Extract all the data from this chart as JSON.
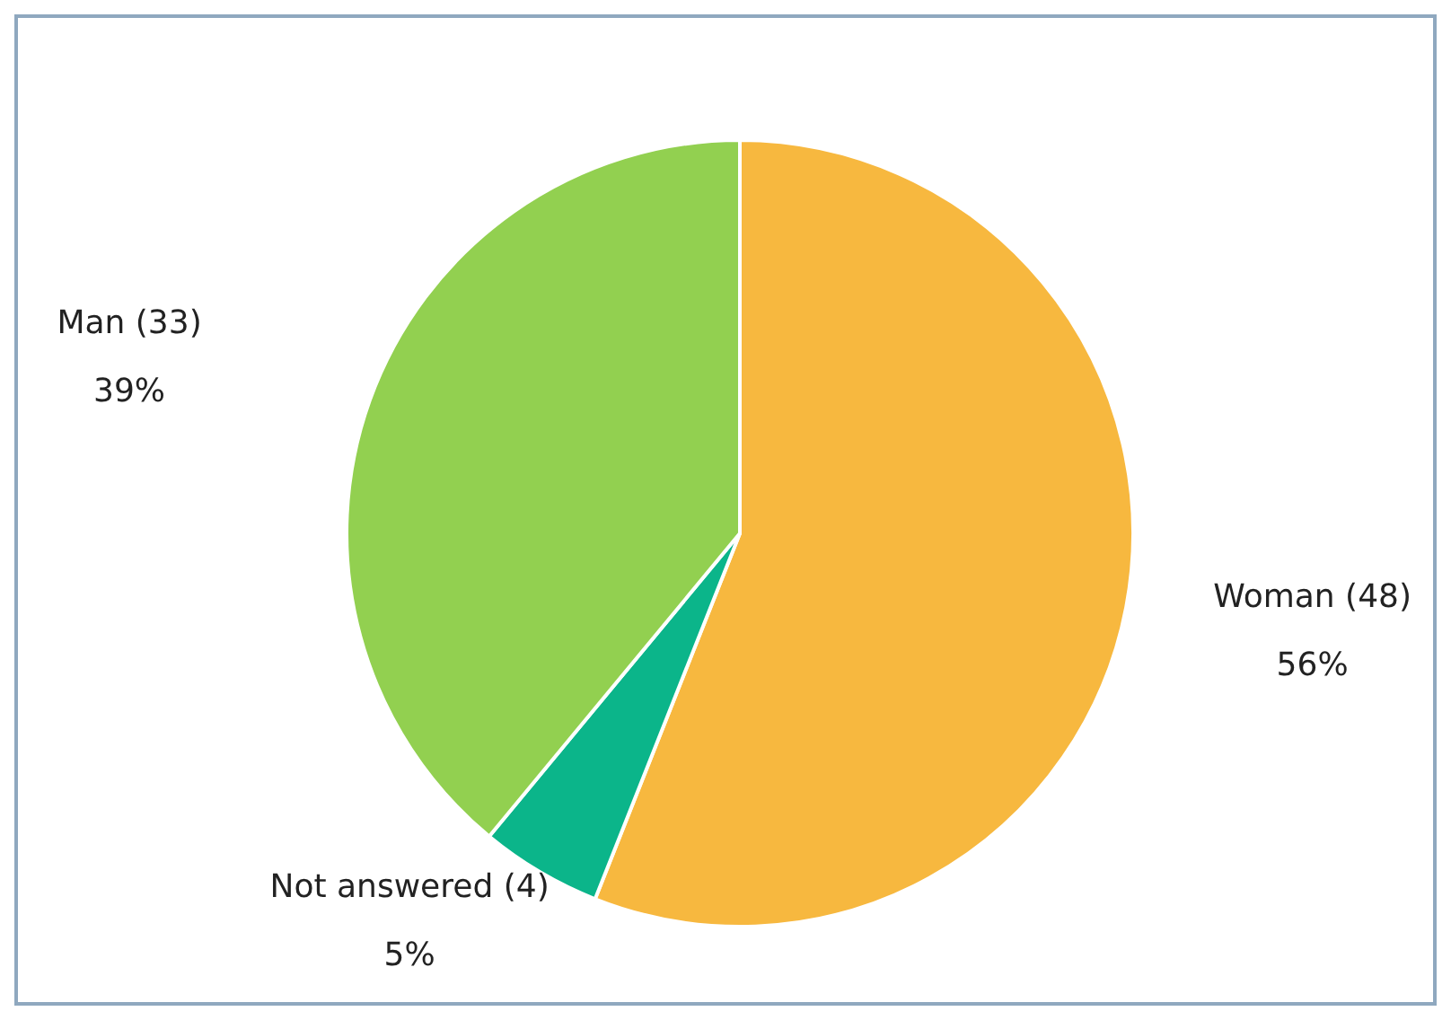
{
  "chart_data": {
    "type": "pie",
    "categories": [
      "Woman (48)",
      "Not answered (4)",
      "Man (33)"
    ],
    "values": [
      56,
      5,
      39
    ],
    "colors": [
      "#f7b83f",
      "#0bb58a",
      "#92d050"
    ],
    "value_labels": [
      "56%",
      "5%",
      "39%"
    ],
    "legend": false
  }
}
